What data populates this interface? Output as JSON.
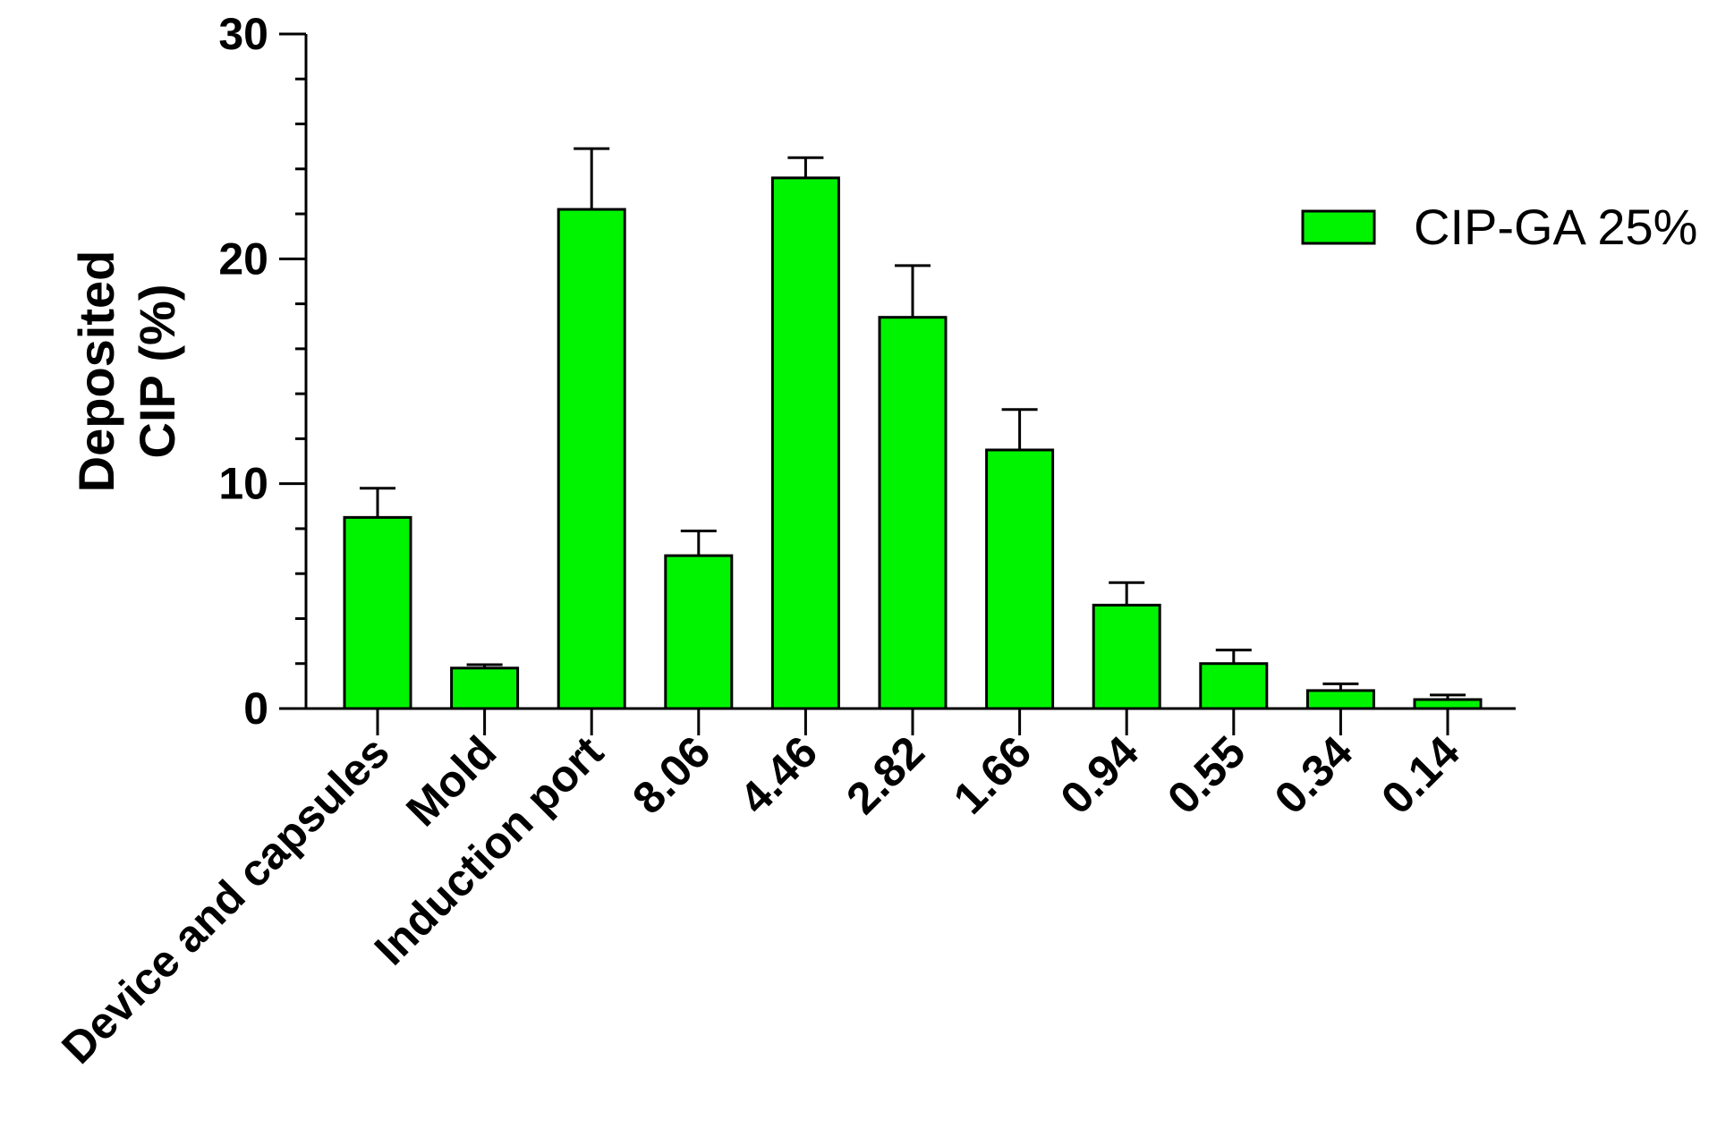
{
  "chart_data": {
    "type": "bar",
    "title": "",
    "xlabel": "",
    "ylabel_lines": [
      "Deposited",
      "CIP (%)"
    ],
    "ylim": [
      0,
      30
    ],
    "yticks": [
      0,
      10,
      20,
      30
    ],
    "y_minor_step": 2,
    "categories": [
      "Device and capsules",
      "Mold",
      "Induction port",
      "8.06",
      "4.46",
      "2.82",
      "1.66",
      "0.94",
      "0.55",
      "0.34",
      "0.14"
    ],
    "series": [
      {
        "name": "CIP-GA 25%",
        "color": "#00f400",
        "values": [
          8.5,
          1.8,
          22.2,
          6.8,
          23.6,
          17.4,
          11.5,
          4.6,
          2.0,
          0.8,
          0.4
        ],
        "error": [
          1.3,
          0.15,
          2.7,
          1.1,
          0.9,
          2.3,
          1.8,
          1.0,
          0.6,
          0.3,
          0.2
        ]
      }
    ],
    "legend_position": "top-right",
    "grid": false
  }
}
